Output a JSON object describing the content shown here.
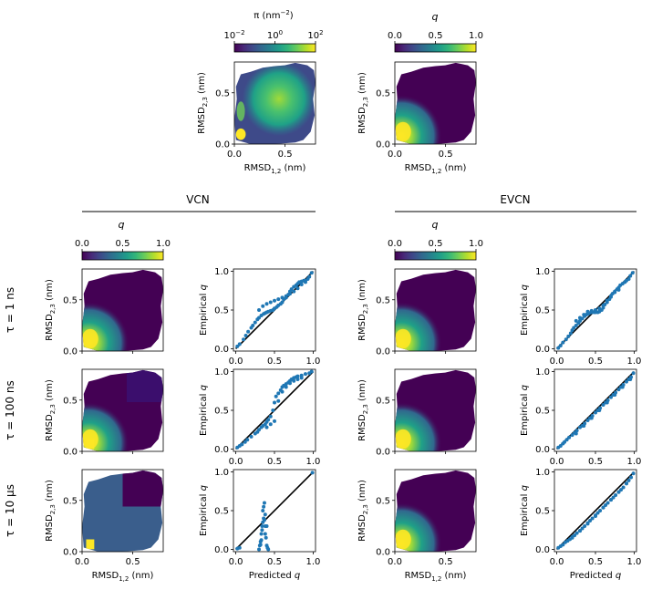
{
  "colors": {
    "viridis": [
      "#440154",
      "#482878",
      "#3e4989",
      "#31688e",
      "#26828e",
      "#1f9e89",
      "#35b779",
      "#6ece58",
      "#b5de2b",
      "#fde725"
    ],
    "scatter": "#1f77b4",
    "diagonal": "#000000"
  },
  "labels": {
    "rmsd_x": "RMSD",
    "rmsd_x_sub": "1,2",
    "rmsd_y": "RMSD",
    "rmsd_y_sub": "2,3",
    "unit": " (nm)",
    "empirical": "Empirical",
    "predicted": "Predicted",
    "q": "q",
    "pi_cb": "π (nm",
    "pi_cb_exp": "−2",
    "pi_cb_close": ")",
    "vcn": "VCN",
    "evcn": "EVCN",
    "tau_1ns": "τ = 1 ns",
    "tau_100ns": "τ = 100 ns",
    "tau_10us": "τ = 10 μs"
  },
  "chart_data": [
    {
      "id": "pi-map",
      "type": "heatmap",
      "xlabel": "RMSD1,2 (nm)",
      "ylabel": "RMSD2,3 (nm)",
      "xlim": [
        0,
        0.8
      ],
      "ylim": [
        0,
        0.8
      ],
      "xticks": [
        "0.0",
        "0.5"
      ],
      "yticks": [
        "0.0",
        "0.5"
      ],
      "colorbar": {
        "label": "π (nm−2)",
        "scale": "log",
        "ticks": [
          "10",
          "10",
          "10"
        ],
        "tick_exps": [
          "−2",
          "0",
          "2"
        ],
        "range": [
          0.01,
          100
        ]
      }
    },
    {
      "id": "q-map",
      "type": "heatmap",
      "xlabel": "RMSD1,2 (nm)",
      "ylabel": "RMSD2,3 (nm)",
      "xlim": [
        0,
        0.8
      ],
      "ylim": [
        0,
        0.8
      ],
      "xticks": [
        "0.0",
        "0.5"
      ],
      "yticks": [
        "0.0",
        "0.5"
      ],
      "colorbar": {
        "label": "q",
        "ticks": [
          "0.0",
          "0.5",
          "1.0"
        ],
        "range": [
          0,
          1
        ]
      }
    },
    {
      "id": "vcn-q-colorbar",
      "colorbar": {
        "label": "q",
        "ticks": [
          "0.0",
          "0.5",
          "1.0"
        ],
        "range": [
          0,
          1
        ]
      }
    },
    {
      "id": "evcn-q-colorbar",
      "colorbar": {
        "label": "q",
        "ticks": [
          "0.0",
          "0.5",
          "1.0"
        ],
        "range": [
          0,
          1
        ]
      }
    },
    {
      "id": "vcn-1ns-scatter",
      "type": "scatter",
      "xlim": [
        0,
        1
      ],
      "ylim": [
        0,
        1
      ],
      "xticks": [
        "0.0",
        "0.5",
        "1.0"
      ],
      "yticks": [
        "0.0",
        "0.5",
        "1.0"
      ],
      "x": [
        0.02,
        0.05,
        0.1,
        0.13,
        0.16,
        0.2,
        0.22,
        0.25,
        0.28,
        0.3,
        0.33,
        0.36,
        0.38,
        0.4,
        0.42,
        0.45,
        0.48,
        0.5,
        0.53,
        0.55,
        0.58,
        0.6,
        0.62,
        0.65,
        0.68,
        0.7,
        0.72,
        0.75,
        0.78,
        0.8,
        0.82,
        0.85,
        0.88,
        0.9,
        0.93,
        0.95,
        0.98,
        0.3,
        0.35,
        0.4,
        0.45,
        0.5,
        0.55,
        0.6,
        0.65,
        0.7,
        0.75,
        0.8,
        0.85,
        0.9
      ],
      "y": [
        0.03,
        0.06,
        0.12,
        0.17,
        0.22,
        0.27,
        0.3,
        0.34,
        0.38,
        0.4,
        0.43,
        0.45,
        0.46,
        0.47,
        0.48,
        0.49,
        0.5,
        0.52,
        0.54,
        0.56,
        0.58,
        0.6,
        0.64,
        0.66,
        0.7,
        0.74,
        0.77,
        0.8,
        0.82,
        0.84,
        0.86,
        0.87,
        0.88,
        0.88,
        0.9,
        0.93,
        0.98,
        0.5,
        0.55,
        0.58,
        0.6,
        0.62,
        0.64,
        0.66,
        0.68,
        0.71,
        0.74,
        0.78,
        0.83,
        0.86
      ]
    },
    {
      "id": "vcn-100ns-scatter",
      "type": "scatter",
      "xlim": [
        0,
        1
      ],
      "ylim": [
        0,
        1
      ],
      "xticks": [
        "0.0",
        "0.5",
        "1.0"
      ],
      "yticks": [
        "0.0",
        "0.5",
        "1.0"
      ],
      "x": [
        0.02,
        0.05,
        0.08,
        0.12,
        0.15,
        0.2,
        0.25,
        0.28,
        0.3,
        0.33,
        0.35,
        0.38,
        0.4,
        0.42,
        0.45,
        0.48,
        0.5,
        0.52,
        0.55,
        0.58,
        0.6,
        0.62,
        0.65,
        0.68,
        0.7,
        0.72,
        0.75,
        0.78,
        0.8,
        0.85,
        0.9,
        0.95,
        0.98,
        0.4,
        0.45,
        0.5,
        0.55,
        0.6,
        0.65,
        0.7,
        0.75,
        0.8,
        0.85
      ],
      "y": [
        0.02,
        0.04,
        0.06,
        0.09,
        0.12,
        0.16,
        0.2,
        0.22,
        0.25,
        0.28,
        0.3,
        0.32,
        0.35,
        0.38,
        0.42,
        0.5,
        0.6,
        0.68,
        0.72,
        0.76,
        0.8,
        0.82,
        0.84,
        0.86,
        0.88,
        0.9,
        0.92,
        0.93,
        0.94,
        0.95,
        0.97,
        0.98,
        1.0,
        0.28,
        0.32,
        0.36,
        0.62,
        0.74,
        0.8,
        0.85,
        0.88,
        0.9,
        0.92
      ]
    },
    {
      "id": "vcn-10us-scatter",
      "type": "scatter",
      "xlim": [
        0,
        1
      ],
      "ylim": [
        0,
        1
      ],
      "xticks": [
        "0.0",
        "0.5",
        "1.0"
      ],
      "yticks": [
        "0.0",
        "0.5",
        "1.0"
      ],
      "xlabel": "Predicted q",
      "x": [
        0.02,
        0.05,
        0.3,
        0.31,
        0.32,
        0.33,
        0.34,
        0.35,
        0.36,
        0.37,
        0.38,
        0.39,
        0.4,
        0.41,
        0.42,
        0.35,
        0.36,
        0.37,
        0.38,
        0.34,
        0.33,
        0.32,
        0.4,
        0.38,
        0.99
      ],
      "y": [
        0.01,
        0.02,
        0.0,
        0.05,
        0.1,
        0.2,
        0.3,
        0.35,
        0.4,
        0.38,
        0.3,
        0.15,
        0.05,
        0.02,
        0.0,
        0.5,
        0.55,
        0.6,
        0.45,
        0.25,
        0.12,
        0.06,
        0.3,
        0.2,
        0.99
      ]
    },
    {
      "id": "evcn-1ns-scatter",
      "type": "scatter",
      "xlim": [
        0,
        1
      ],
      "ylim": [
        0,
        1
      ],
      "xticks": [
        "0.0",
        "0.5",
        "1.0"
      ],
      "yticks": [
        "0.0",
        "0.5",
        "1.0"
      ],
      "x": [
        0.02,
        0.05,
        0.08,
        0.12,
        0.15,
        0.18,
        0.2,
        0.22,
        0.25,
        0.28,
        0.3,
        0.33,
        0.36,
        0.38,
        0.4,
        0.42,
        0.45,
        0.48,
        0.5,
        0.53,
        0.55,
        0.58,
        0.6,
        0.62,
        0.65,
        0.68,
        0.7,
        0.72,
        0.75,
        0.78,
        0.8,
        0.82,
        0.85,
        0.88,
        0.9,
        0.93,
        0.95,
        0.98,
        0.25,
        0.3,
        0.35,
        0.4,
        0.45,
        0.5,
        0.55,
        0.6,
        0.65,
        0.7,
        0.75,
        0.8
      ],
      "y": [
        0.01,
        0.04,
        0.08,
        0.12,
        0.16,
        0.2,
        0.24,
        0.27,
        0.3,
        0.33,
        0.36,
        0.39,
        0.42,
        0.44,
        0.45,
        0.46,
        0.47,
        0.47,
        0.47,
        0.47,
        0.48,
        0.5,
        0.53,
        0.57,
        0.6,
        0.64,
        0.67,
        0.71,
        0.74,
        0.77,
        0.79,
        0.82,
        0.84,
        0.86,
        0.88,
        0.9,
        0.94,
        0.98,
        0.36,
        0.4,
        0.44,
        0.48,
        0.49,
        0.5,
        0.52,
        0.56,
        0.62,
        0.68,
        0.73,
        0.76
      ]
    },
    {
      "id": "evcn-100ns-scatter",
      "type": "scatter",
      "xlim": [
        0,
        1
      ],
      "ylim": [
        0,
        1
      ],
      "xticks": [
        "0.0",
        "0.5",
        "1.0"
      ],
      "yticks": [
        "0.0",
        "0.5",
        "1.0"
      ],
      "x": [
        0.02,
        0.05,
        0.08,
        0.1,
        0.13,
        0.16,
        0.2,
        0.23,
        0.26,
        0.3,
        0.33,
        0.36,
        0.4,
        0.43,
        0.46,
        0.5,
        0.53,
        0.56,
        0.6,
        0.63,
        0.66,
        0.7,
        0.73,
        0.76,
        0.8,
        0.83,
        0.86,
        0.9,
        0.93,
        0.96,
        0.99,
        0.25,
        0.35,
        0.45,
        0.55,
        0.65,
        0.75,
        0.85,
        0.95
      ],
      "y": [
        0.02,
        0.04,
        0.07,
        0.09,
        0.12,
        0.15,
        0.18,
        0.21,
        0.24,
        0.28,
        0.3,
        0.33,
        0.37,
        0.4,
        0.43,
        0.47,
        0.5,
        0.53,
        0.57,
        0.6,
        0.63,
        0.67,
        0.7,
        0.73,
        0.77,
        0.8,
        0.83,
        0.87,
        0.9,
        0.93,
        0.98,
        0.2,
        0.3,
        0.4,
        0.5,
        0.6,
        0.7,
        0.8,
        0.9
      ]
    },
    {
      "id": "evcn-10us-scatter",
      "type": "scatter",
      "xlim": [
        0,
        1
      ],
      "ylim": [
        0,
        1
      ],
      "xticks": [
        "0.0",
        "0.5",
        "1.0"
      ],
      "yticks": [
        "0.0",
        "0.5",
        "1.0"
      ],
      "xlabel": "Predicted q",
      "x": [
        0.02,
        0.05,
        0.08,
        0.11,
        0.14,
        0.17,
        0.2,
        0.23,
        0.26,
        0.3,
        0.33,
        0.36,
        0.4,
        0.43,
        0.46,
        0.5,
        0.53,
        0.56,
        0.6,
        0.63,
        0.66,
        0.7,
        0.73,
        0.76,
        0.8,
        0.83,
        0.86,
        0.9,
        0.93,
        0.96,
        0.99,
        0.2,
        0.3,
        0.4,
        0.5,
        0.6,
        0.7,
        0.8,
        0.9
      ],
      "y": [
        0.02,
        0.04,
        0.06,
        0.09,
        0.11,
        0.13,
        0.16,
        0.18,
        0.21,
        0.24,
        0.27,
        0.3,
        0.34,
        0.37,
        0.4,
        0.44,
        0.47,
        0.5,
        0.54,
        0.57,
        0.6,
        0.64,
        0.67,
        0.7,
        0.74,
        0.77,
        0.8,
        0.85,
        0.89,
        0.93,
        0.98,
        0.15,
        0.24,
        0.33,
        0.43,
        0.54,
        0.64,
        0.74,
        0.85
      ]
    }
  ]
}
